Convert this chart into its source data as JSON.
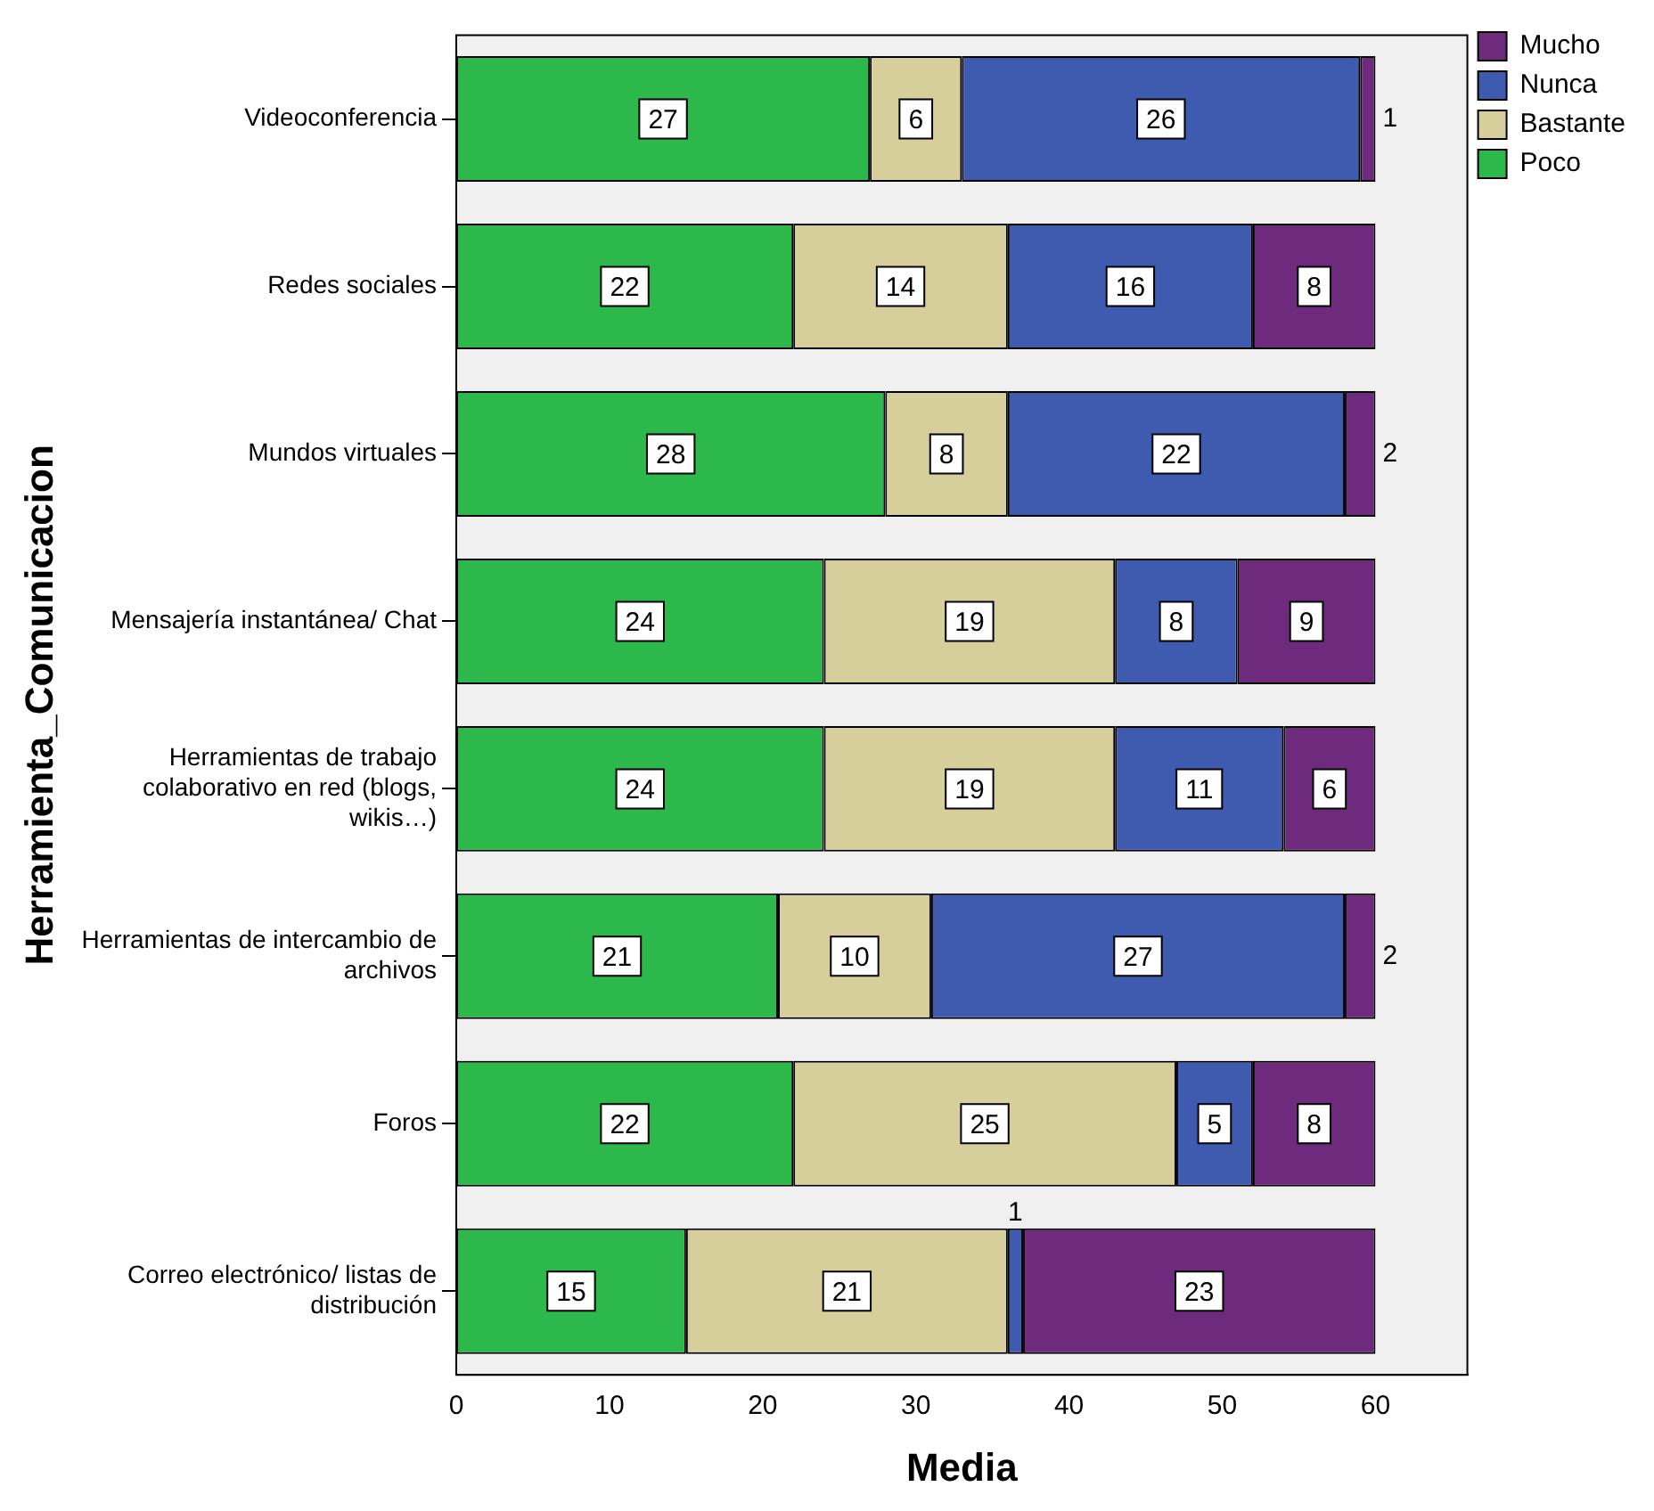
{
  "chart_data": {
    "type": "bar",
    "orientation": "horizontal",
    "stacked": true,
    "xlabel": "Media",
    "ylabel": "Herramienta_Comunicacion",
    "categories": [
      "Videoconferencia",
      "Redes sociales",
      "Mundos virtuales",
      "Mensajería instantánea/ Chat",
      "Herramientas de trabajo colaborativo en red (blogs, wikis…)",
      "Herramientas de intercambio de archivos",
      "Foros",
      "Correo electrónico/ listas de distribución"
    ],
    "series": [
      {
        "name": "Poco",
        "color": "#2db84b",
        "values": [
          27,
          22,
          28,
          24,
          24,
          21,
          22,
          15
        ]
      },
      {
        "name": "Bastante",
        "color": "#d6cf9c",
        "values": [
          6,
          14,
          8,
          19,
          19,
          10,
          25,
          21
        ]
      },
      {
        "name": "Nunca",
        "color": "#3f5bb0",
        "values": [
          26,
          16,
          22,
          8,
          11,
          27,
          5,
          1
        ]
      },
      {
        "name": "Mucho",
        "color": "#6e2a7c",
        "values": [
          1,
          8,
          2,
          9,
          6,
          2,
          8,
          23
        ]
      }
    ],
    "xlim": [
      0,
      66
    ],
    "xticks": [
      0,
      10,
      20,
      30,
      40,
      50,
      60
    ],
    "data_labels": true,
    "legend": "top right",
    "grid": false
  }
}
